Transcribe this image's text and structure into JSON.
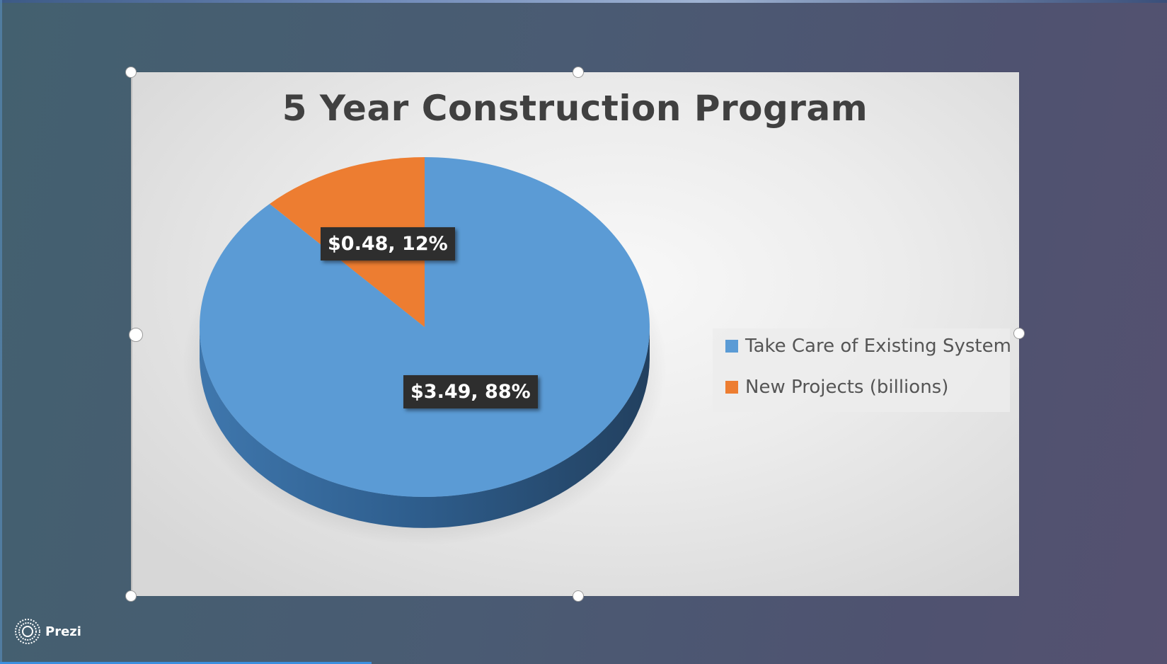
{
  "brand": {
    "name": "Prezi",
    "logo_icon": "prezi-logo-icon"
  },
  "slide": {
    "chart_data": {
      "type": "pie",
      "title": "5 Year Construction Program",
      "categories": [
        "Take Care of Existing System",
        "New Projects (billions)"
      ],
      "values": [
        3.49,
        0.48
      ],
      "percents": [
        88,
        12
      ],
      "data_labels": [
        "$3.49, 88%",
        "$0.48, 12%"
      ],
      "colors": [
        "#5b9bd5",
        "#ed7d31"
      ],
      "legend_position": "right",
      "style": "3d"
    },
    "legend": {
      "items": [
        {
          "label": "Take Care of Existing System",
          "color": "#5b9bd5"
        },
        {
          "label": "New Projects (billions)",
          "color": "#ed7d31"
        }
      ]
    }
  }
}
